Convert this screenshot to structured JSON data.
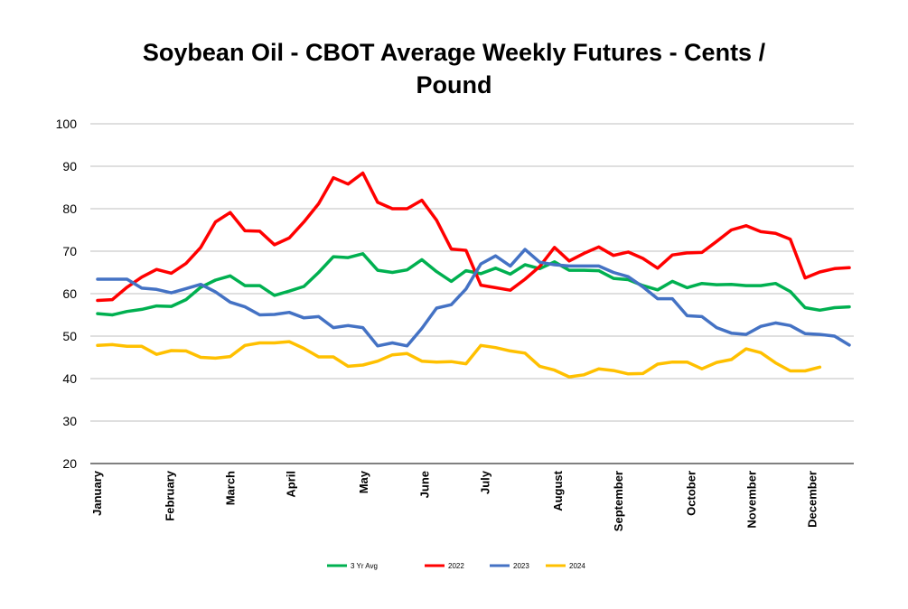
{
  "chart_data": {
    "type": "line",
    "title_line1": "Soybean Oil - CBOT Average Weekly Futures - Cents /",
    "title_line2": "Pound",
    "xlabel": "",
    "ylabel": "",
    "ylim": [
      20,
      100
    ],
    "yticks": [
      20,
      30,
      40,
      50,
      60,
      70,
      80,
      90,
      100
    ],
    "grid": "horizontal",
    "legend_position": "bottom",
    "weeks": 52,
    "months": [
      {
        "label": "January",
        "week": 1
      },
      {
        "label": "February",
        "week": 7
      },
      {
        "label": "March",
        "week": 12
      },
      {
        "label": "April",
        "week": 17
      },
      {
        "label": "May",
        "week": 23
      },
      {
        "label": "June",
        "week": 28
      },
      {
        "label": "July",
        "week": 33
      },
      {
        "label": "August",
        "week": 39
      },
      {
        "label": "September",
        "week": 44
      },
      {
        "label": "October",
        "week": 50
      },
      {
        "label": "November",
        "week": 55
      },
      {
        "label": "December",
        "week": 60
      }
    ],
    "series": [
      {
        "name": "3 Yr Avg",
        "color": "#00b050",
        "values": [
          55.3,
          55.0,
          55.8,
          56.3,
          57.1,
          57.0,
          58.6,
          61.5,
          63.2,
          64.2,
          61.9,
          61.9,
          59.6,
          60.6,
          61.7,
          65.0,
          68.7,
          68.5,
          69.4,
          65.5,
          65.0,
          65.6,
          68.0,
          65.2,
          62.9,
          65.4,
          64.7,
          66.0,
          64.6,
          66.8,
          65.9,
          67.5,
          65.5,
          65.5,
          65.4,
          63.6,
          63.3,
          61.9,
          60.9,
          62.9,
          61.4,
          62.4,
          62.1,
          62.2,
          61.9,
          61.9,
          62.4,
          60.5,
          56.7,
          56.1,
          56.7,
          56.9
        ]
      },
      {
        "name": "2022",
        "color": "#ff0000",
        "values": [
          58.4,
          58.6,
          61.5,
          63.9,
          65.7,
          64.8,
          67.1,
          70.9,
          76.9,
          79.1,
          74.8,
          74.7,
          71.5,
          73.1,
          76.9,
          81.2,
          87.3,
          85.8,
          88.4,
          81.5,
          80.0,
          80.0,
          82.0,
          77.3,
          70.5,
          70.2,
          62.0,
          61.4,
          60.8,
          63.4,
          66.4,
          70.9,
          67.7,
          69.5,
          71.0,
          69.0,
          69.8,
          68.3,
          66.0,
          69.1,
          69.6,
          69.7,
          72.3,
          75.0,
          76.0,
          74.6,
          74.2,
          72.8,
          63.7,
          65.1,
          65.9,
          66.1
        ]
      },
      {
        "name": "2023",
        "color": "#4472c4",
        "values": [
          63.4,
          63.4,
          63.4,
          61.3,
          61.0,
          60.2,
          61.2,
          62.2,
          60.4,
          58.0,
          56.9,
          55.0,
          55.1,
          55.6,
          54.3,
          54.6,
          52.0,
          52.5,
          52.0,
          47.7,
          48.4,
          47.7,
          51.8,
          56.6,
          57.4,
          61.1,
          67.0,
          68.9,
          66.5,
          70.4,
          67.4,
          66.8,
          66.5,
          66.5,
          66.5,
          65.0,
          64.0,
          61.6,
          58.8,
          58.8,
          54.8,
          54.6,
          52.0,
          50.7,
          50.4,
          52.3,
          53.1,
          52.5,
          50.6,
          50.4,
          50.0,
          47.9
        ]
      },
      {
        "name": "2024",
        "color": "#ffc000",
        "values": [
          47.8,
          48.0,
          47.6,
          47.6,
          45.7,
          46.6,
          46.5,
          45.0,
          44.8,
          45.2,
          47.8,
          48.4,
          48.4,
          48.7,
          47.1,
          45.1,
          45.1,
          42.9,
          43.2,
          44.1,
          45.6,
          45.9,
          44.1,
          43.9,
          44.0,
          43.5,
          47.8,
          47.3,
          46.5,
          46.0,
          42.9,
          42.0,
          40.4,
          40.9,
          42.3,
          41.9,
          41.1,
          41.2,
          43.4,
          43.9,
          43.9,
          42.3,
          43.8,
          44.5,
          47.0,
          46.1,
          43.7,
          41.8,
          41.8,
          42.7
        ]
      }
    ]
  }
}
